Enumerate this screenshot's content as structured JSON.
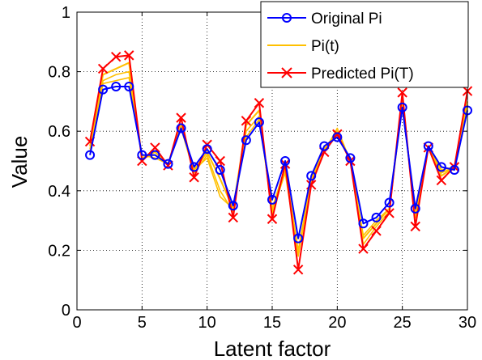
{
  "chart_data": {
    "type": "line",
    "title": "",
    "xlabel": "Latent factor",
    "ylabel": "Value",
    "xlim": [
      0,
      30
    ],
    "ylim": [
      0,
      1
    ],
    "xticks": [
      0,
      5,
      10,
      15,
      20,
      25,
      30
    ],
    "yticks": [
      0,
      0.2,
      0.4,
      0.6,
      0.8,
      1
    ],
    "xtick_labels": [
      "0",
      "5",
      "10",
      "15",
      "20",
      "25",
      "30"
    ],
    "ytick_labels": [
      "0",
      "0.2",
      "0.4",
      "0.6",
      "0.8",
      "1"
    ],
    "grid": true,
    "legend_position": "top-right",
    "x": [
      1,
      2,
      3,
      4,
      5,
      6,
      7,
      8,
      9,
      10,
      11,
      12,
      13,
      14,
      15,
      16,
      17,
      18,
      19,
      20,
      21,
      22,
      23,
      24,
      25,
      26,
      27,
      28,
      29,
      30
    ],
    "series": [
      {
        "name": "Pi(t)",
        "color": "#FFC000",
        "marker": "none",
        "values": [
          0.55,
          0.79,
          0.81,
          0.83,
          0.51,
          0.53,
          0.49,
          0.62,
          0.47,
          0.53,
          0.44,
          0.34,
          0.62,
          0.67,
          0.32,
          0.47,
          0.19,
          0.44,
          0.53,
          0.6,
          0.5,
          0.24,
          0.29,
          0.34,
          0.7,
          0.31,
          0.55,
          0.45,
          0.48,
          0.7
        ],
        "interm_a": [
          0.54,
          0.77,
          0.79,
          0.8,
          0.51,
          0.52,
          0.49,
          0.61,
          0.46,
          0.52,
          0.4,
          0.33,
          0.6,
          0.65,
          0.33,
          0.46,
          0.18,
          0.43,
          0.53,
          0.61,
          0.5,
          0.22,
          0.28,
          0.33,
          0.7,
          0.32,
          0.55,
          0.46,
          0.48,
          0.69
        ],
        "interm_b": [
          0.53,
          0.76,
          0.77,
          0.78,
          0.52,
          0.51,
          0.49,
          0.61,
          0.47,
          0.51,
          0.38,
          0.34,
          0.58,
          0.64,
          0.34,
          0.48,
          0.2,
          0.44,
          0.54,
          0.6,
          0.5,
          0.25,
          0.3,
          0.34,
          0.69,
          0.32,
          0.55,
          0.47,
          0.48,
          0.68
        ]
      },
      {
        "name": "Predicted Pi(T)",
        "color": "#FF0000",
        "marker": "x",
        "values": [
          0.565,
          0.81,
          0.85,
          0.855,
          0.5,
          0.545,
          0.485,
          0.645,
          0.445,
          0.555,
          0.5,
          0.31,
          0.635,
          0.695,
          0.305,
          0.49,
          0.135,
          0.42,
          0.53,
          0.59,
          0.5,
          0.205,
          0.265,
          0.325,
          0.73,
          0.28,
          0.545,
          0.435,
          0.48,
          0.735
        ]
      },
      {
        "name": "Original Pi",
        "color": "#0000FF",
        "marker": "o",
        "values": [
          0.52,
          0.74,
          0.75,
          0.75,
          0.52,
          0.52,
          0.49,
          0.61,
          0.48,
          0.54,
          0.47,
          0.35,
          0.57,
          0.63,
          0.37,
          0.5,
          0.24,
          0.45,
          0.55,
          0.58,
          0.51,
          0.29,
          0.31,
          0.36,
          0.68,
          0.34,
          0.55,
          0.48,
          0.47,
          0.67
        ]
      }
    ]
  }
}
